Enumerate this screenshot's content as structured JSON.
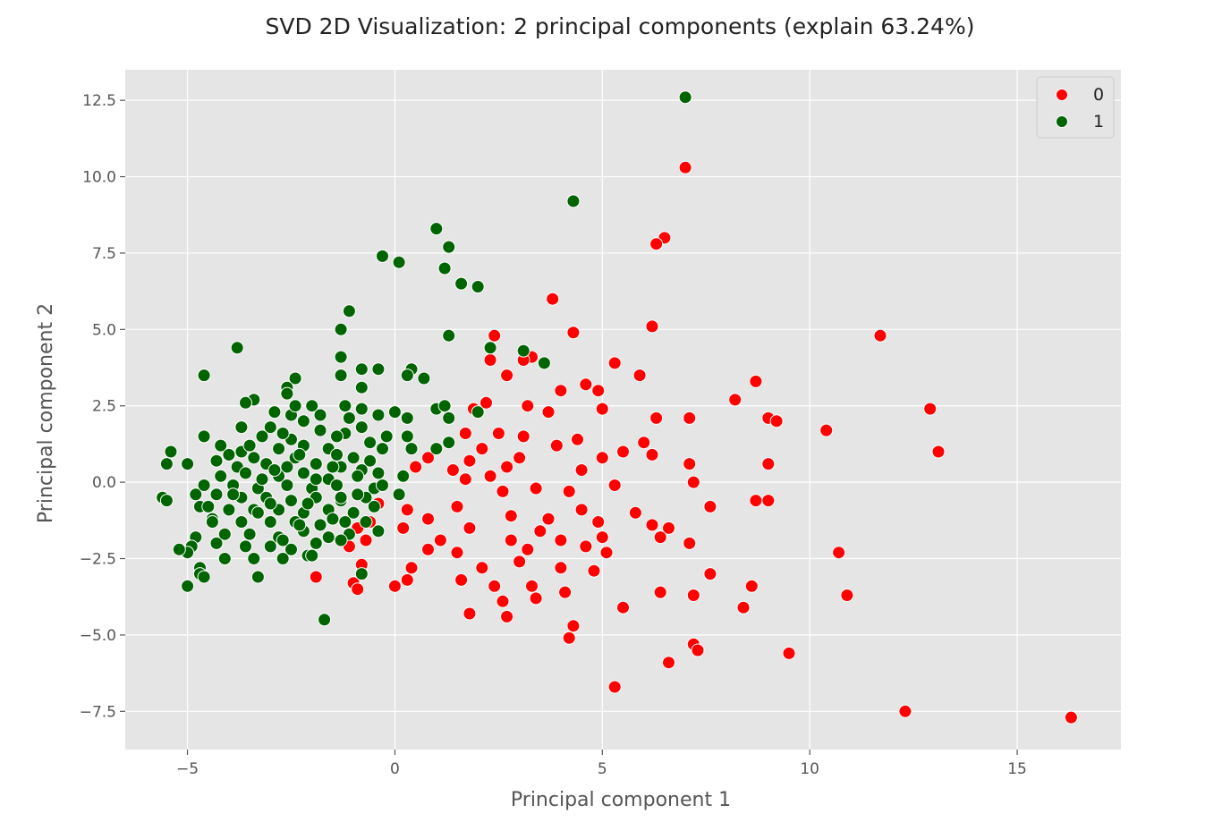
{
  "colors": {
    "plot_background": "#e5e5e5",
    "grid": "#ffffff",
    "class_0": "#ff0000",
    "class_1": "#006400",
    "marker_edge": "#ffffff"
  },
  "chart_data": {
    "type": "scatter",
    "title": "SVD 2D Visualization: 2 principal components (explain 63.24%)",
    "xlabel": "Principal component 1",
    "ylabel": "Principal component 2",
    "xlim": [
      -6.5,
      17.5
    ],
    "ylim": [
      -8.75,
      13.5
    ],
    "xticks": [
      -5,
      0,
      5,
      10,
      15
    ],
    "xtick_labels": [
      "−5",
      "0",
      "5",
      "10",
      "15"
    ],
    "yticks": [
      -7.5,
      -5.0,
      -2.5,
      0.0,
      2.5,
      5.0,
      7.5,
      10.0,
      12.5
    ],
    "ytick_labels": [
      "−7.5",
      "−5.0",
      "−2.5",
      "0.0",
      "2.5",
      "5.0",
      "7.5",
      "10.0",
      "12.5"
    ],
    "grid": true,
    "legend": {
      "location": "top-right",
      "entries": [
        "0",
        "1"
      ]
    },
    "series": [
      {
        "name": "0",
        "color": "#ff0000",
        "points": [
          [
            7.0,
            10.3
          ],
          [
            6.5,
            8.0
          ],
          [
            6.3,
            7.8
          ],
          [
            3.8,
            6.0
          ],
          [
            6.2,
            5.1
          ],
          [
            4.3,
            4.9
          ],
          [
            2.4,
            4.8
          ],
          [
            11.7,
            4.8
          ],
          [
            3.3,
            4.1
          ],
          [
            5.3,
            3.9
          ],
          [
            5.9,
            3.5
          ],
          [
            2.7,
            3.5
          ],
          [
            8.7,
            3.3
          ],
          [
            4.0,
            3.0
          ],
          [
            4.6,
            3.2
          ],
          [
            4.9,
            3.0
          ],
          [
            8.2,
            2.7
          ],
          [
            2.2,
            2.6
          ],
          [
            3.2,
            2.5
          ],
          [
            3.7,
            2.3
          ],
          [
            5.0,
            2.4
          ],
          [
            12.9,
            2.4
          ],
          [
            6.3,
            2.1
          ],
          [
            7.1,
            2.1
          ],
          [
            9.0,
            2.1
          ],
          [
            9.2,
            2.0
          ],
          [
            10.4,
            1.7
          ],
          [
            1.7,
            1.6
          ],
          [
            2.5,
            1.6
          ],
          [
            3.1,
            1.5
          ],
          [
            4.4,
            1.4
          ],
          [
            6.0,
            1.3
          ],
          [
            2.1,
            1.1
          ],
          [
            3.9,
            1.2
          ],
          [
            5.5,
            1.0
          ],
          [
            6.2,
            0.9
          ],
          [
            13.1,
            1.0
          ],
          [
            0.8,
            0.8
          ],
          [
            1.8,
            0.7
          ],
          [
            3.0,
            0.8
          ],
          [
            5.0,
            0.8
          ],
          [
            7.1,
            0.6
          ],
          [
            9.0,
            0.6
          ],
          [
            0.5,
            0.5
          ],
          [
            1.4,
            0.4
          ],
          [
            2.7,
            0.5
          ],
          [
            4.5,
            0.4
          ],
          [
            1.7,
            0.1
          ],
          [
            2.3,
            0.2
          ],
          [
            7.2,
            0.0
          ],
          [
            5.3,
            -0.1
          ],
          [
            2.6,
            -0.3
          ],
          [
            3.4,
            -0.2
          ],
          [
            4.2,
            -0.3
          ],
          [
            8.7,
            -0.6
          ],
          [
            9.0,
            -0.6
          ],
          [
            0.3,
            -0.9
          ],
          [
            1.5,
            -0.8
          ],
          [
            4.5,
            -0.9
          ],
          [
            5.8,
            -1.0
          ],
          [
            7.6,
            -0.8
          ],
          [
            0.8,
            -1.2
          ],
          [
            2.8,
            -1.1
          ],
          [
            3.7,
            -1.2
          ],
          [
            4.9,
            -1.3
          ],
          [
            0.2,
            -1.5
          ],
          [
            1.8,
            -1.5
          ],
          [
            3.5,
            -1.6
          ],
          [
            6.2,
            -1.4
          ],
          [
            6.6,
            -1.5
          ],
          [
            1.1,
            -1.9
          ],
          [
            2.8,
            -1.9
          ],
          [
            4.0,
            -1.9
          ],
          [
            5.0,
            -1.8
          ],
          [
            6.4,
            -1.8
          ],
          [
            7.1,
            -2.0
          ],
          [
            0.8,
            -2.2
          ],
          [
            1.5,
            -2.3
          ],
          [
            3.2,
            -2.2
          ],
          [
            4.6,
            -2.1
          ],
          [
            5.1,
            -2.3
          ],
          [
            10.7,
            -2.3
          ],
          [
            0.4,
            -2.8
          ],
          [
            2.1,
            -2.8
          ],
          [
            3.0,
            -2.6
          ],
          [
            4.0,
            -2.8
          ],
          [
            4.8,
            -2.9
          ],
          [
            7.6,
            -3.0
          ],
          [
            0.3,
            -3.2
          ],
          [
            1.6,
            -3.2
          ],
          [
            2.4,
            -3.4
          ],
          [
            3.3,
            -3.4
          ],
          [
            4.1,
            -3.6
          ],
          [
            6.4,
            -3.6
          ],
          [
            7.2,
            -3.7
          ],
          [
            8.6,
            -3.4
          ],
          [
            10.9,
            -3.7
          ],
          [
            2.6,
            -3.9
          ],
          [
            3.4,
            -3.8
          ],
          [
            5.5,
            -4.1
          ],
          [
            8.4,
            -4.1
          ],
          [
            1.8,
            -4.3
          ],
          [
            2.7,
            -4.4
          ],
          [
            4.3,
            -4.7
          ],
          [
            4.2,
            -5.1
          ],
          [
            7.2,
            -5.3
          ],
          [
            7.3,
            -5.5
          ],
          [
            9.5,
            -5.6
          ],
          [
            6.6,
            -5.9
          ],
          [
            5.3,
            -6.7
          ],
          [
            12.3,
            -7.5
          ],
          [
            16.3,
            -7.7
          ],
          [
            -0.9,
            -1.5
          ],
          [
            -1.1,
            -2.1
          ],
          [
            -0.6,
            -1.3
          ],
          [
            -0.4,
            -0.7
          ],
          [
            -1.9,
            -3.1
          ],
          [
            -1.0,
            -3.3
          ],
          [
            -0.9,
            -3.5
          ],
          [
            0.0,
            -3.4
          ],
          [
            -0.8,
            -2.7
          ],
          [
            -0.7,
            -1.9
          ],
          [
            1.9,
            2.4
          ],
          [
            2.3,
            4.0
          ],
          [
            3.1,
            4.0
          ]
        ]
      },
      {
        "name": "1",
        "color": "#006400",
        "points": [
          [
            7.0,
            12.6
          ],
          [
            4.3,
            9.2
          ],
          [
            1.0,
            8.3
          ],
          [
            1.3,
            7.7
          ],
          [
            -0.3,
            7.4
          ],
          [
            0.1,
            7.2
          ],
          [
            1.2,
            7.0
          ],
          [
            1.6,
            6.5
          ],
          [
            2.0,
            6.4
          ],
          [
            -1.1,
            5.6
          ],
          [
            -1.3,
            5.0
          ],
          [
            1.3,
            4.8
          ],
          [
            -3.8,
            4.4
          ],
          [
            2.3,
            4.4
          ],
          [
            3.1,
            4.3
          ],
          [
            -1.3,
            4.1
          ],
          [
            3.6,
            3.9
          ],
          [
            -0.4,
            3.7
          ],
          [
            -0.8,
            3.7
          ],
          [
            0.4,
            3.7
          ],
          [
            -4.6,
            3.5
          ],
          [
            -2.4,
            3.4
          ],
          [
            -1.3,
            3.5
          ],
          [
            0.3,
            3.5
          ],
          [
            0.7,
            3.4
          ],
          [
            -2.6,
            3.1
          ],
          [
            -0.8,
            3.1
          ],
          [
            -3.4,
            2.7
          ],
          [
            -3.6,
            2.6
          ],
          [
            -2.0,
            2.5
          ],
          [
            -1.2,
            2.5
          ],
          [
            -0.8,
            2.4
          ],
          [
            1.0,
            2.4
          ],
          [
            1.2,
            2.5
          ],
          [
            2.0,
            2.3
          ],
          [
            -2.9,
            2.3
          ],
          [
            -2.5,
            2.2
          ],
          [
            -0.4,
            2.2
          ],
          [
            0.3,
            2.1
          ],
          [
            -2.2,
            2.0
          ],
          [
            1.3,
            2.1
          ],
          [
            -3.0,
            1.8
          ],
          [
            -1.8,
            1.7
          ],
          [
            -0.8,
            1.8
          ],
          [
            -4.6,
            1.5
          ],
          [
            -3.2,
            1.5
          ],
          [
            -2.5,
            1.4
          ],
          [
            -1.2,
            1.6
          ],
          [
            0.3,
            1.5
          ],
          [
            1.3,
            1.3
          ],
          [
            -4.2,
            1.2
          ],
          [
            -3.7,
            1.0
          ],
          [
            -2.8,
            1.1
          ],
          [
            -2.2,
            1.2
          ],
          [
            -1.6,
            1.1
          ],
          [
            -0.3,
            1.1
          ],
          [
            0.4,
            1.1
          ],
          [
            1.0,
            1.1
          ],
          [
            -5.4,
            1.0
          ],
          [
            -4.0,
            0.9
          ],
          [
            -3.4,
            0.8
          ],
          [
            -2.4,
            0.8
          ],
          [
            -1.4,
            0.9
          ],
          [
            -0.6,
            0.7
          ],
          [
            -5.5,
            0.6
          ],
          [
            -5.0,
            0.6
          ],
          [
            -3.8,
            0.5
          ],
          [
            -3.1,
            0.6
          ],
          [
            -2.6,
            0.5
          ],
          [
            -1.9,
            0.6
          ],
          [
            -1.3,
            0.5
          ],
          [
            -0.8,
            0.4
          ],
          [
            -4.2,
            0.2
          ],
          [
            -3.6,
            0.3
          ],
          [
            -2.8,
            0.2
          ],
          [
            -2.2,
            0.3
          ],
          [
            -1.6,
            0.1
          ],
          [
            -0.9,
            0.2
          ],
          [
            0.2,
            0.2
          ],
          [
            -4.6,
            -0.1
          ],
          [
            -3.9,
            -0.1
          ],
          [
            -3.3,
            -0.2
          ],
          [
            -2.6,
            -0.1
          ],
          [
            -2.0,
            -0.2
          ],
          [
            -1.4,
            -0.1
          ],
          [
            -0.5,
            -0.2
          ],
          [
            -5.6,
            -0.5
          ],
          [
            -5.5,
            -0.6
          ],
          [
            -4.8,
            -0.4
          ],
          [
            -4.3,
            -0.4
          ],
          [
            -3.7,
            -0.5
          ],
          [
            -3.1,
            -0.5
          ],
          [
            -2.5,
            -0.6
          ],
          [
            -1.9,
            -0.5
          ],
          [
            -1.3,
            -0.6
          ],
          [
            -0.7,
            -0.5
          ],
          [
            0.1,
            -0.4
          ],
          [
            -4.7,
            -0.8
          ],
          [
            -4.0,
            -0.9
          ],
          [
            -3.4,
            -0.9
          ],
          [
            -2.8,
            -0.9
          ],
          [
            -2.2,
            -1.0
          ],
          [
            -1.6,
            -0.9
          ],
          [
            -1.0,
            -1.0
          ],
          [
            -0.5,
            -0.8
          ],
          [
            -4.4,
            -1.2
          ],
          [
            -3.7,
            -1.3
          ],
          [
            -3.0,
            -1.3
          ],
          [
            -2.4,
            -1.3
          ],
          [
            -1.8,
            -1.4
          ],
          [
            -1.2,
            -1.3
          ],
          [
            -0.7,
            -1.3
          ],
          [
            -4.8,
            -1.8
          ],
          [
            -4.1,
            -1.7
          ],
          [
            -3.5,
            -1.7
          ],
          [
            -2.8,
            -1.8
          ],
          [
            -2.2,
            -1.6
          ],
          [
            -1.6,
            -1.8
          ],
          [
            -1.1,
            -1.7
          ],
          [
            -0.4,
            -1.6
          ],
          [
            -4.9,
            -2.1
          ],
          [
            -4.3,
            -2.0
          ],
          [
            -3.6,
            -2.1
          ],
          [
            -3.0,
            -2.1
          ],
          [
            -2.5,
            -2.2
          ],
          [
            -1.9,
            -2.0
          ],
          [
            -1.3,
            -1.9
          ],
          [
            -5.0,
            -2.3
          ],
          [
            -4.1,
            -2.5
          ],
          [
            -3.4,
            -2.5
          ],
          [
            -2.7,
            -2.5
          ],
          [
            -2.1,
            -2.4
          ],
          [
            -4.7,
            -2.8
          ],
          [
            -4.7,
            -3.0
          ],
          [
            -4.6,
            -3.1
          ],
          [
            -3.3,
            -3.1
          ],
          [
            -5.0,
            -3.4
          ],
          [
            -0.8,
            -3.0
          ],
          [
            -1.7,
            -4.5
          ],
          [
            -5.2,
            -2.2
          ],
          [
            -4.4,
            -1.3
          ],
          [
            -4.5,
            -0.8
          ],
          [
            -3.2,
            0.1
          ],
          [
            -2.3,
            0.9
          ],
          [
            -1.0,
            0.8
          ],
          [
            -0.6,
            1.3
          ],
          [
            -2.1,
            -0.7
          ],
          [
            -1.5,
            -1.2
          ],
          [
            -0.9,
            -0.4
          ],
          [
            -3.5,
            1.2
          ],
          [
            -2.7,
            1.6
          ],
          [
            -1.4,
            1.5
          ],
          [
            -3.9,
            -0.4
          ],
          [
            -3.0,
            -0.7
          ],
          [
            -2.3,
            -1.4
          ],
          [
            -1.8,
            2.2
          ],
          [
            -2.4,
            2.5
          ],
          [
            -1.9,
            0.1
          ],
          [
            -2.9,
            0.4
          ],
          [
            -3.3,
            -1.0
          ],
          [
            -2.0,
            -2.4
          ],
          [
            -1.5,
            0.5
          ],
          [
            -0.3,
            -0.1
          ],
          [
            -4.3,
            0.7
          ],
          [
            -3.7,
            1.8
          ],
          [
            -2.6,
            2.9
          ],
          [
            -1.1,
            2.1
          ],
          [
            0.0,
            2.3
          ],
          [
            -0.2,
            1.5
          ],
          [
            -0.4,
            0.3
          ],
          [
            -1.3,
            -0.5
          ],
          [
            -2.7,
            -1.9
          ]
        ]
      }
    ]
  }
}
